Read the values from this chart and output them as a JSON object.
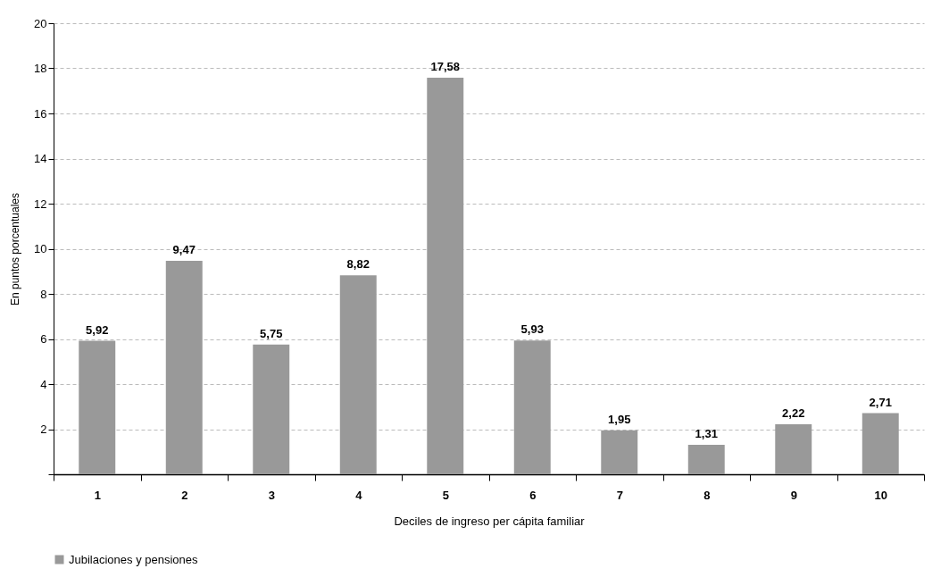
{
  "chart_data": {
    "type": "bar",
    "xlabel": "Deciles de ingreso per cápita familiar",
    "ylabel": "En puntos porcentuales",
    "categories": [
      "1",
      "2",
      "3",
      "4",
      "5",
      "6",
      "7",
      "8",
      "9",
      "10"
    ],
    "series": [
      {
        "name": "Jubilaciones y pensiones",
        "color": "#999999",
        "values": [
          5.92,
          9.47,
          5.75,
          8.82,
          17.58,
          5.93,
          1.95,
          1.31,
          2.22,
          2.71
        ],
        "value_labels": [
          "5,92",
          "9,47",
          "5,75",
          "8,82",
          "17,58",
          "5,93",
          "1,95",
          "1,31",
          "2,22",
          "2,71"
        ]
      }
    ],
    "ylim": [
      0,
      20
    ],
    "yticks": [
      {
        "value": 0,
        "label": null
      },
      2,
      4,
      6,
      8,
      10,
      12,
      14,
      16,
      18,
      20
    ],
    "grid": "y",
    "legend": "bottom"
  }
}
